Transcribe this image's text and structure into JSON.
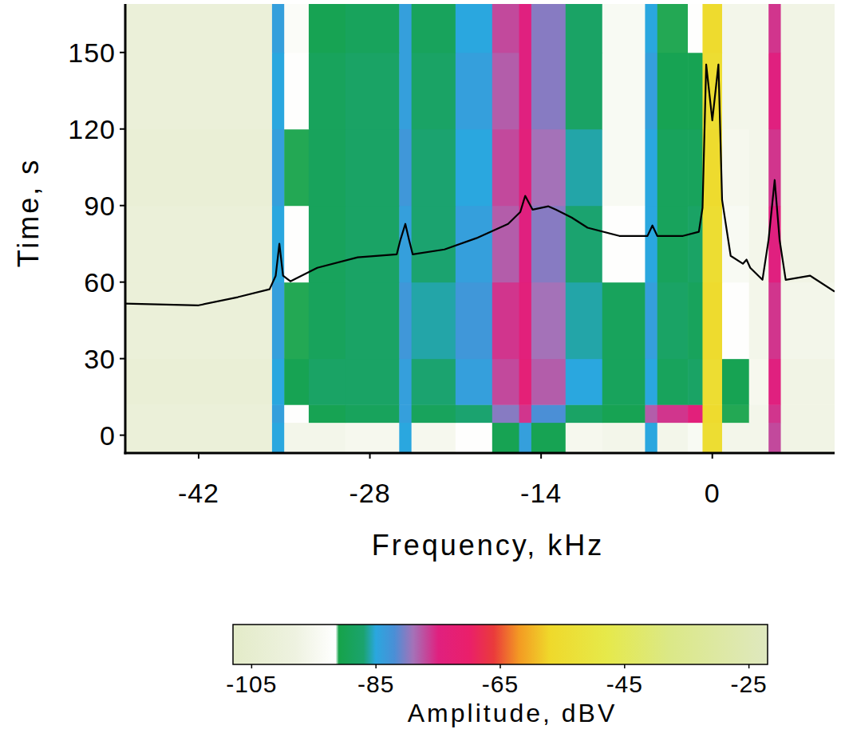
{
  "chart_data": {
    "type": "heatmap",
    "x_label": "Frequency, kHz",
    "y_label": "Time, s",
    "xlim": [
      -48,
      10
    ],
    "ylim": [
      -7,
      169
    ],
    "xticks": [
      -42,
      -28,
      -14,
      0
    ],
    "yticks": [
      0,
      30,
      60,
      90,
      120,
      150
    ],
    "x_edges": [
      -48,
      -36,
      -35,
      -33,
      -30,
      -25.6,
      -24.6,
      -21,
      -18,
      -15.8,
      -14.8,
      -12,
      -9,
      -5.5,
      -4.5,
      -2,
      -0.8,
      0.8,
      3,
      4.6,
      5.6,
      10
    ],
    "y_edges": [
      -7,
      5,
      12,
      30,
      60,
      90,
      120,
      150,
      169
    ],
    "cells": [
      [
        -101,
        -85,
        -96,
        -96,
        -95,
        -85,
        -95,
        -92,
        -90,
        -84,
        -90,
        -95,
        -96,
        -85,
        -96,
        -94,
        -55,
        -96,
        -96,
        -77,
        -97
      ],
      [
        -101,
        -84,
        -92,
        -90,
        -89,
        -84,
        -89,
        -87,
        -80,
        -76,
        -82,
        -88,
        -90,
        -78,
        -76,
        -74,
        -56,
        -91,
        -96,
        -76,
        -97
      ],
      [
        -102,
        -85,
        -90,
        -88,
        -88,
        -84,
        -87,
        -84,
        -77,
        -73,
        -78,
        -85,
        -89,
        -85,
        -89,
        -88,
        -55,
        -90,
        -95,
        -75,
        -97
      ],
      [
        -101,
        -84,
        -91,
        -89,
        -88,
        -83,
        -86,
        -83,
        -76,
        -74,
        -79,
        -86,
        -89,
        -84,
        -88,
        -89,
        -56,
        -92,
        -96,
        -76,
        -96
      ],
      [
        -101,
        -85,
        -92,
        -89,
        -88,
        -84,
        -87,
        -84,
        -78,
        -75,
        -80,
        -87,
        -92,
        -85,
        -89,
        -88,
        -55,
        -94,
        -96,
        -75,
        -97
      ],
      [
        -102,
        -84,
        -91,
        -89,
        -88,
        -83,
        -87,
        -85,
        -77,
        -74,
        -79,
        -86,
        -94,
        -85,
        -89,
        -89,
        -56,
        -95,
        -96,
        -76,
        -97
      ],
      [
        -101,
        -85,
        -92,
        -89,
        -88,
        -84,
        -88,
        -84,
        -78,
        -75,
        -80,
        -88,
        -94,
        -84,
        -90,
        -90,
        -55,
        -96,
        -96,
        -75,
        -97
      ],
      [
        -101,
        -84,
        -93,
        -90,
        -89,
        -84,
        -89,
        -85,
        -77,
        -75,
        -80,
        -88,
        -94,
        -85,
        -91,
        -92,
        -56,
        -96,
        -96,
        -76,
        -97
      ]
    ],
    "colorbar": {
      "range": [
        -108,
        -22
      ],
      "ticks": [
        -105,
        -85,
        -65,
        -45,
        -25
      ],
      "label": "Amplitude, dBV"
    },
    "series": [
      {
        "type": "line",
        "color": "#000000",
        "x": [
          -48.0,
          -42.0,
          -38.8,
          -36.2,
          -35.7,
          -35.4,
          -35.1,
          -34.5,
          -32.3,
          -29.0,
          -25.8,
          -25.5,
          -25.1,
          -24.8,
          -24.5,
          -21.9,
          -19.3,
          -16.7,
          -15.7,
          -15.3,
          -14.7,
          -13.4,
          -12.8,
          -11.5,
          -10.2,
          -7.6,
          -5.3,
          -4.9,
          -4.5,
          -2.4,
          -1.1,
          -0.8,
          -0.5,
          0,
          0.5,
          0.8,
          1.5,
          2.5,
          2.8,
          3.1,
          4.1,
          4.6,
          5.1,
          5.5,
          6.0,
          8.0,
          10.0
        ],
        "values": [
          51.6,
          50.9,
          54.1,
          57.2,
          62.5,
          75.0,
          62.5,
          60.3,
          65.6,
          69.7,
          70.9,
          76.6,
          82.8,
          76.6,
          70.9,
          72.8,
          77.2,
          82.8,
          87.5,
          93.8,
          88.4,
          89.7,
          88.4,
          85.3,
          81.3,
          78.1,
          78.1,
          82.2,
          78.1,
          78.1,
          79.7,
          89.1,
          145.3,
          123.4,
          145.3,
          92.2,
          70.3,
          67.2,
          68.8,
          65.6,
          60.9,
          76.6,
          100.0,
          76.6,
          60.9,
          62.5,
          56.3
        ]
      }
    ]
  }
}
